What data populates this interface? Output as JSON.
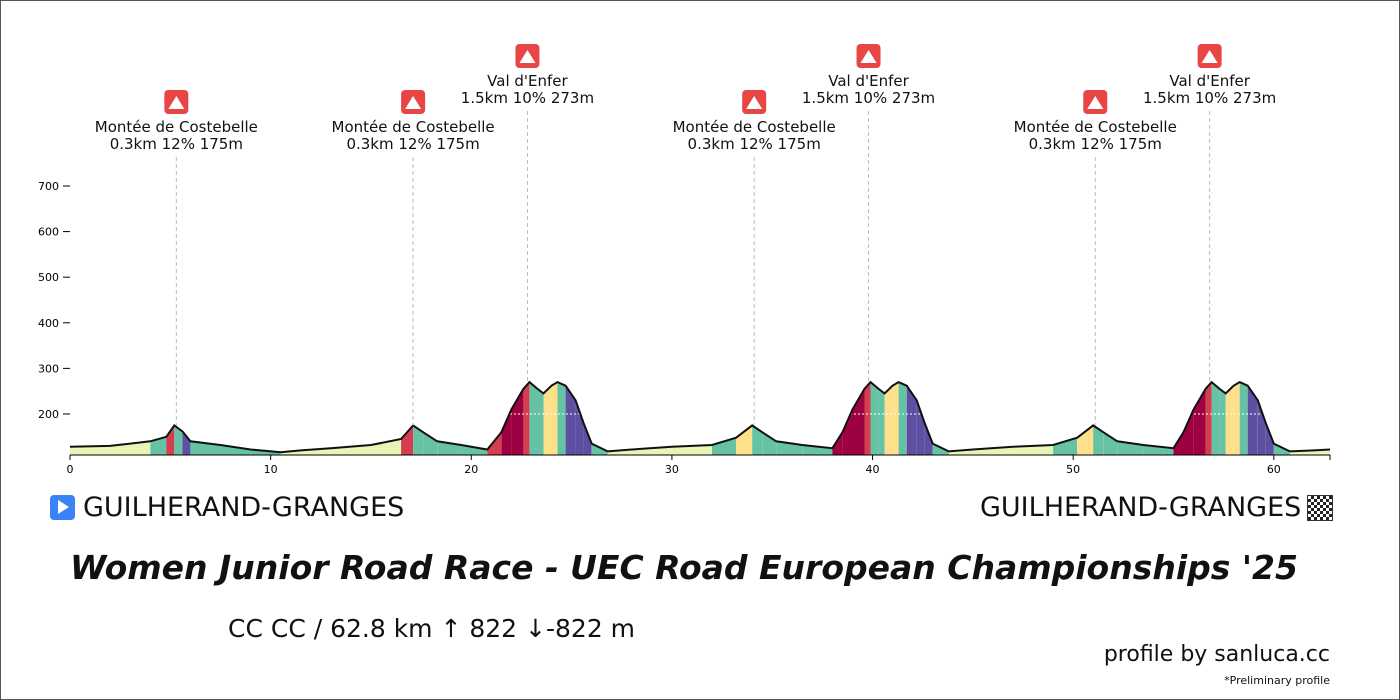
{
  "header": {
    "start_place": "GUILHERAND-GRANGES",
    "finish_place": "GUILHERAND-GRANGES",
    "title": "Women Junior Road Race - UEC Road European Championships '25",
    "stats": "CC CC / 62.8 km  ↑ 822 ↓-822 m",
    "credit": "profile by sanluca.cc",
    "note": "*Preliminary profile"
  },
  "icons": {
    "start": "play-icon",
    "finish": "checkered-flag-icon",
    "climb": "mountain-icon"
  },
  "colors": {
    "climb_icon": "#e84545",
    "outline": "#111111",
    "gradient_bands": [
      "#e6f5b5",
      "#8fd3b0",
      "#66c2a5",
      "#fee08b",
      "#f46d43",
      "#d53e4f",
      "#9e0142",
      "#5e4fa2",
      "#3288bd"
    ]
  },
  "chart_data": {
    "type": "area",
    "xlabel": "",
    "ylabel": "",
    "xlim": [
      0,
      62.8
    ],
    "ylim": [
      110,
      750
    ],
    "x_ticks": [
      0,
      10,
      20,
      30,
      40,
      50,
      60
    ],
    "y_ticks": [
      200,
      300,
      400,
      500,
      600,
      700
    ],
    "grid": false,
    "distance_km": 62.8,
    "elevation_gain_m": 822,
    "elevation_loss_m": -822,
    "profile": [
      [
        0,
        128
      ],
      [
        2,
        130
      ],
      [
        4,
        140
      ],
      [
        4.8,
        150
      ],
      [
        5.2,
        175
      ],
      [
        5.6,
        162
      ],
      [
        6.0,
        140
      ],
      [
        7.5,
        132
      ],
      [
        9,
        122
      ],
      [
        10.5,
        116
      ],
      [
        11.5,
        120
      ],
      [
        13,
        125
      ],
      [
        15,
        132
      ],
      [
        16.5,
        145
      ],
      [
        17.1,
        175
      ],
      [
        17.6,
        160
      ],
      [
        18.3,
        140
      ],
      [
        19.5,
        132
      ],
      [
        20.8,
        122
      ],
      [
        21.5,
        160
      ],
      [
        22.0,
        210
      ],
      [
        22.6,
        255
      ],
      [
        22.9,
        270
      ],
      [
        23.3,
        255
      ],
      [
        23.6,
        245
      ],
      [
        24.0,
        262
      ],
      [
        24.3,
        270
      ],
      [
        24.7,
        262
      ],
      [
        25.2,
        230
      ],
      [
        25.6,
        180
      ],
      [
        26.0,
        135
      ],
      [
        26.8,
        118
      ],
      [
        28,
        122
      ],
      [
        30,
        128
      ],
      [
        32,
        132
      ],
      [
        33.2,
        148
      ],
      [
        34.0,
        175
      ],
      [
        34.5,
        160
      ],
      [
        35.2,
        140
      ],
      [
        36.5,
        132
      ],
      [
        38.0,
        125
      ],
      [
        38.5,
        160
      ],
      [
        39.0,
        210
      ],
      [
        39.6,
        255
      ],
      [
        39.9,
        270
      ],
      [
        40.3,
        255
      ],
      [
        40.6,
        245
      ],
      [
        41.0,
        262
      ],
      [
        41.3,
        270
      ],
      [
        41.7,
        262
      ],
      [
        42.2,
        230
      ],
      [
        42.6,
        180
      ],
      [
        43.0,
        135
      ],
      [
        43.8,
        118
      ],
      [
        45,
        122
      ],
      [
        47,
        128
      ],
      [
        49,
        132
      ],
      [
        50.2,
        148
      ],
      [
        51.0,
        175
      ],
      [
        51.5,
        160
      ],
      [
        52.2,
        140
      ],
      [
        53.5,
        132
      ],
      [
        55.0,
        125
      ],
      [
        55.5,
        160
      ],
      [
        56.0,
        210
      ],
      [
        56.6,
        255
      ],
      [
        56.9,
        270
      ],
      [
        57.3,
        255
      ],
      [
        57.6,
        245
      ],
      [
        58.0,
        262
      ],
      [
        58.3,
        270
      ],
      [
        58.7,
        262
      ],
      [
        59.2,
        230
      ],
      [
        59.6,
        180
      ],
      [
        60.0,
        135
      ],
      [
        60.8,
        118
      ],
      [
        62.0,
        120
      ],
      [
        62.8,
        122
      ]
    ],
    "climbs": [
      {
        "name": "Montée de Costebelle",
        "stats": "0.3km 12% 175m",
        "km": 5.3
      },
      {
        "name": "Montée de Costebelle",
        "stats": "0.3km 12% 175m",
        "km": 17.1
      },
      {
        "name": "Val d'Enfer",
        "stats": "1.5km 10% 273m",
        "km": 22.8
      },
      {
        "name": "Montée de Costebelle",
        "stats": "0.3km 12% 175m",
        "km": 34.1
      },
      {
        "name": "Val d'Enfer",
        "stats": "1.5km 10% 273m",
        "km": 39.8
      },
      {
        "name": "Montée de Costebelle",
        "stats": "0.3km 12% 175m",
        "km": 51.1
      },
      {
        "name": "Val d'Enfer",
        "stats": "1.5km 10% 273m",
        "km": 56.8
      }
    ]
  }
}
